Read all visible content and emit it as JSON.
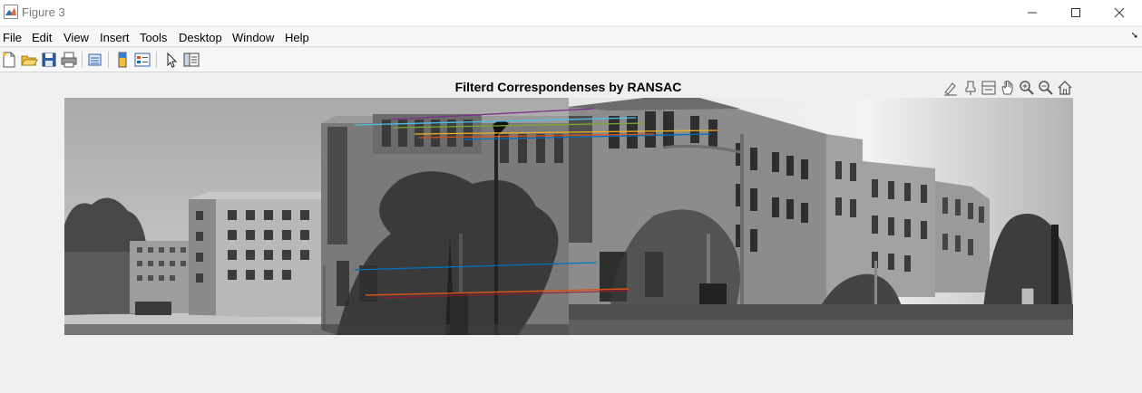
{
  "window": {
    "title": "Figure 3"
  },
  "menu": {
    "items": [
      "File",
      "Edit",
      "View",
      "Insert",
      "Tools",
      "Desktop",
      "Window",
      "Help"
    ],
    "dock_glyph": "➘"
  },
  "toolbar": {
    "icons": [
      "new-figure-icon",
      "open-file-icon",
      "save-icon",
      "print-icon",
      "link-plot-icon",
      "insert-colorbar-icon",
      "insert-legend-icon",
      "edit-plot-icon",
      "property-inspector-icon"
    ]
  },
  "axes": {
    "title": "Filterd Correspondenses by RANSAC",
    "toolbar_icons": [
      "brush-data-icon",
      "data-tips-icon",
      "export-icon",
      "pan-icon",
      "zoom-in-icon",
      "zoom-out-icon",
      "restore-view-icon"
    ]
  },
  "correspondences": {
    "colors": [
      "#7e2f8e",
      "#4dbeee",
      "#77ac30",
      "#edb120",
      "#d95319",
      "#0072bd",
      "#a2142f",
      "#d95319"
    ]
  }
}
